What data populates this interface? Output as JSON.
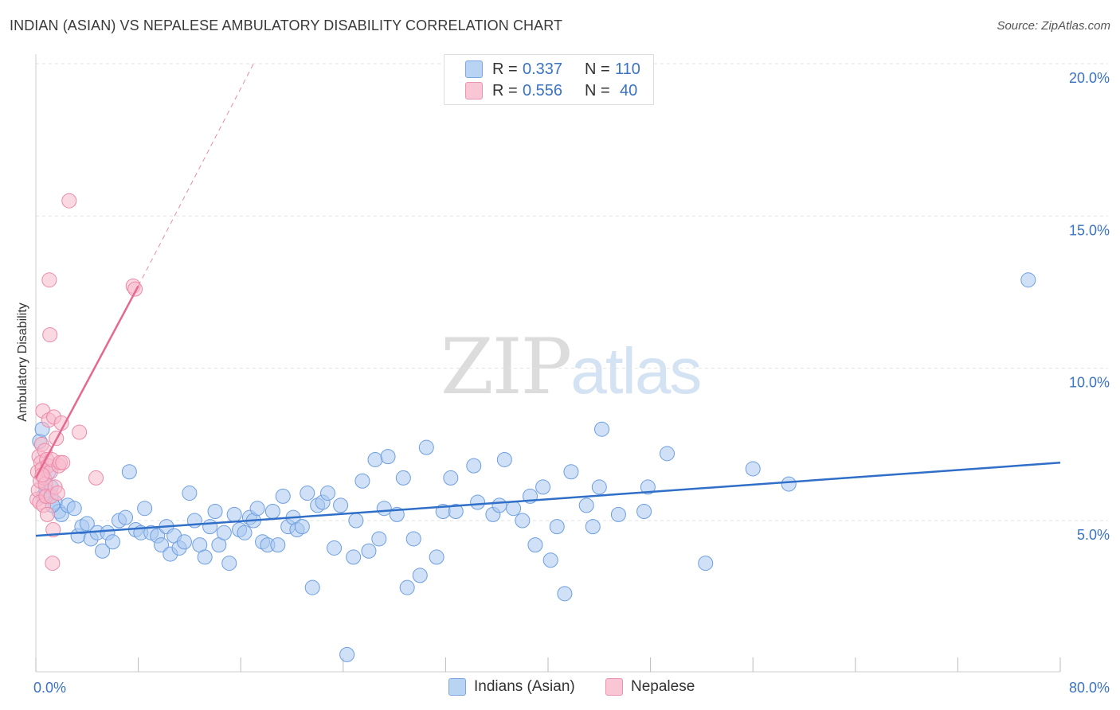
{
  "title": "INDIAN (ASIAN) VS NEPALESE AMBULATORY DISABILITY CORRELATION CHART",
  "source": "Source: ZipAtlas.com",
  "watermark": {
    "zip": "ZIP",
    "atlas": "atlas"
  },
  "legend": {
    "rows": [
      {
        "r_label": "R =",
        "r_value": "0.337",
        "n_label": "N =",
        "n_value": "110"
      },
      {
        "r_label": "R =",
        "r_value": "0.556",
        "n_label": "N =",
        "n_value": "40"
      }
    ]
  },
  "bottom_legend": {
    "series1": "Indians (Asian)",
    "series2": "Nepalese"
  },
  "chart_data": {
    "type": "scatter",
    "title": "INDIAN (ASIAN) VS NEPALESE AMBULATORY DISABILITY CORRELATION CHART",
    "xlabel": "",
    "ylabel": "Ambulatory Disability",
    "xlim": [
      0,
      80
    ],
    "ylim": [
      0,
      21
    ],
    "x_tick_labels": [
      {
        "value": 0,
        "label": "0.0%"
      },
      {
        "value": 80,
        "label": "80.0%"
      }
    ],
    "y_tick_labels": [
      {
        "value": 5,
        "label": "5.0%"
      },
      {
        "value": 10,
        "label": "10.0%"
      },
      {
        "value": 15,
        "label": "15.0%"
      },
      {
        "value": 20,
        "label": "20.0%"
      }
    ],
    "grid": "horizontal dashed",
    "legend_position": "top-center",
    "colors": {
      "series1_fill": "#a9c8f0",
      "series1_stroke": "#6d9ee0",
      "series1_line": "#2f6fc8",
      "series2_fill": "#f7b9cc",
      "series2_stroke": "#eb8aa8",
      "series2_line": "#e5698f",
      "tick_label": "#3b73c3"
    },
    "series": [
      {
        "name": "Indians (Asian)",
        "trend": {
          "x0": 0,
          "y0": 4.5,
          "x1": 80,
          "y1": 6.9
        },
        "points": [
          [
            0.3,
            7.6
          ],
          [
            0.5,
            8.0
          ],
          [
            0.6,
            5.8
          ],
          [
            0.8,
            6.0
          ],
          [
            1.0,
            6.6
          ],
          [
            1.2,
            6.1
          ],
          [
            1.5,
            5.6
          ],
          [
            1.8,
            5.3
          ],
          [
            2.0,
            5.2
          ],
          [
            2.5,
            5.5
          ],
          [
            3.0,
            5.4
          ],
          [
            3.3,
            4.5
          ],
          [
            3.6,
            4.8
          ],
          [
            4.0,
            4.9
          ],
          [
            4.3,
            4.4
          ],
          [
            4.8,
            4.6
          ],
          [
            5.2,
            4.0
          ],
          [
            5.6,
            4.6
          ],
          [
            6.0,
            4.3
          ],
          [
            6.5,
            5.0
          ],
          [
            7.0,
            5.1
          ],
          [
            7.3,
            6.6
          ],
          [
            7.8,
            4.7
          ],
          [
            8.2,
            4.6
          ],
          [
            8.5,
            5.4
          ],
          [
            9.0,
            4.6
          ],
          [
            9.5,
            4.5
          ],
          [
            9.8,
            4.2
          ],
          [
            10.2,
            4.8
          ],
          [
            10.5,
            3.9
          ],
          [
            10.8,
            4.5
          ],
          [
            11.2,
            4.1
          ],
          [
            11.6,
            4.3
          ],
          [
            12.0,
            5.9
          ],
          [
            12.4,
            5.0
          ],
          [
            12.8,
            4.2
          ],
          [
            13.2,
            3.8
          ],
          [
            13.6,
            4.8
          ],
          [
            14.0,
            5.3
          ],
          [
            14.3,
            4.2
          ],
          [
            14.7,
            4.6
          ],
          [
            15.1,
            3.6
          ],
          [
            15.5,
            5.2
          ],
          [
            15.9,
            4.7
          ],
          [
            16.3,
            4.6
          ],
          [
            16.7,
            5.1
          ],
          [
            17.0,
            5.0
          ],
          [
            17.3,
            5.4
          ],
          [
            17.7,
            4.3
          ],
          [
            18.1,
            4.2
          ],
          [
            18.5,
            5.3
          ],
          [
            18.9,
            4.2
          ],
          [
            19.3,
            5.8
          ],
          [
            19.7,
            4.8
          ],
          [
            20.1,
            5.1
          ],
          [
            20.4,
            4.7
          ],
          [
            20.8,
            4.8
          ],
          [
            21.2,
            5.9
          ],
          [
            21.6,
            2.8
          ],
          [
            22.0,
            5.5
          ],
          [
            22.4,
            5.6
          ],
          [
            22.8,
            5.9
          ],
          [
            23.3,
            4.1
          ],
          [
            23.8,
            5.5
          ],
          [
            24.3,
            0.6
          ],
          [
            24.8,
            3.8
          ],
          [
            25.0,
            5.0
          ],
          [
            25.5,
            6.3
          ],
          [
            26.0,
            4.0
          ],
          [
            26.5,
            7.0
          ],
          [
            26.8,
            4.4
          ],
          [
            27.2,
            5.4
          ],
          [
            27.5,
            7.1
          ],
          [
            28.2,
            5.2
          ],
          [
            28.7,
            6.4
          ],
          [
            29.0,
            2.8
          ],
          [
            29.5,
            4.4
          ],
          [
            30.0,
            3.2
          ],
          [
            30.5,
            7.4
          ],
          [
            31.3,
            3.8
          ],
          [
            31.8,
            5.3
          ],
          [
            32.4,
            6.4
          ],
          [
            32.8,
            5.3
          ],
          [
            34.2,
            6.8
          ],
          [
            34.5,
            5.6
          ],
          [
            35.7,
            5.2
          ],
          [
            36.2,
            5.5
          ],
          [
            36.6,
            7.0
          ],
          [
            37.3,
            5.4
          ],
          [
            38.0,
            5.0
          ],
          [
            38.6,
            5.8
          ],
          [
            39.0,
            4.2
          ],
          [
            39.6,
            6.1
          ],
          [
            40.2,
            3.7
          ],
          [
            40.7,
            4.8
          ],
          [
            41.3,
            2.6
          ],
          [
            41.8,
            6.6
          ],
          [
            43.0,
            5.5
          ],
          [
            43.5,
            4.8
          ],
          [
            44.0,
            6.1
          ],
          [
            44.2,
            8.0
          ],
          [
            45.5,
            5.2
          ],
          [
            47.5,
            5.3
          ],
          [
            47.8,
            6.1
          ],
          [
            49.3,
            7.2
          ],
          [
            52.3,
            3.6
          ],
          [
            56.0,
            6.7
          ],
          [
            58.8,
            6.2
          ],
          [
            77.5,
            12.9
          ],
          [
            1.3,
            5.5
          ]
        ]
      },
      {
        "name": "Nepalese",
        "trend": {
          "x0": 0,
          "y0": 6.4,
          "x1": 8,
          "y1": 12.7
        },
        "trend_extension": {
          "x0": 8,
          "y0": 12.7,
          "x1": 17,
          "y1": 20.0
        },
        "points": [
          [
            0.1,
            5.7
          ],
          [
            0.15,
            6.6
          ],
          [
            0.2,
            6.0
          ],
          [
            0.25,
            7.1
          ],
          [
            0.3,
            5.6
          ],
          [
            0.35,
            6.3
          ],
          [
            0.4,
            6.9
          ],
          [
            0.45,
            7.5
          ],
          [
            0.5,
            6.7
          ],
          [
            0.55,
            8.6
          ],
          [
            0.6,
            5.5
          ],
          [
            0.65,
            6.4
          ],
          [
            0.7,
            7.3
          ],
          [
            0.75,
            6.2
          ],
          [
            0.8,
            5.8
          ],
          [
            0.85,
            7.0
          ],
          [
            0.9,
            5.2
          ],
          [
            0.95,
            6.8
          ],
          [
            1.0,
            8.3
          ],
          [
            1.05,
            12.9
          ],
          [
            1.1,
            11.1
          ],
          [
            1.15,
            6.6
          ],
          [
            1.2,
            5.8
          ],
          [
            1.25,
            7.0
          ],
          [
            1.3,
            3.6
          ],
          [
            1.35,
            4.7
          ],
          [
            1.4,
            8.4
          ],
          [
            1.5,
            6.1
          ],
          [
            1.6,
            7.7
          ],
          [
            1.7,
            5.9
          ],
          [
            1.8,
            6.8
          ],
          [
            1.9,
            6.9
          ],
          [
            2.0,
            8.2
          ],
          [
            2.1,
            6.9
          ],
          [
            2.6,
            15.5
          ],
          [
            3.4,
            7.9
          ],
          [
            4.7,
            6.4
          ],
          [
            7.6,
            12.7
          ],
          [
            7.75,
            12.6
          ],
          [
            0.5,
            6.5
          ]
        ]
      }
    ]
  }
}
